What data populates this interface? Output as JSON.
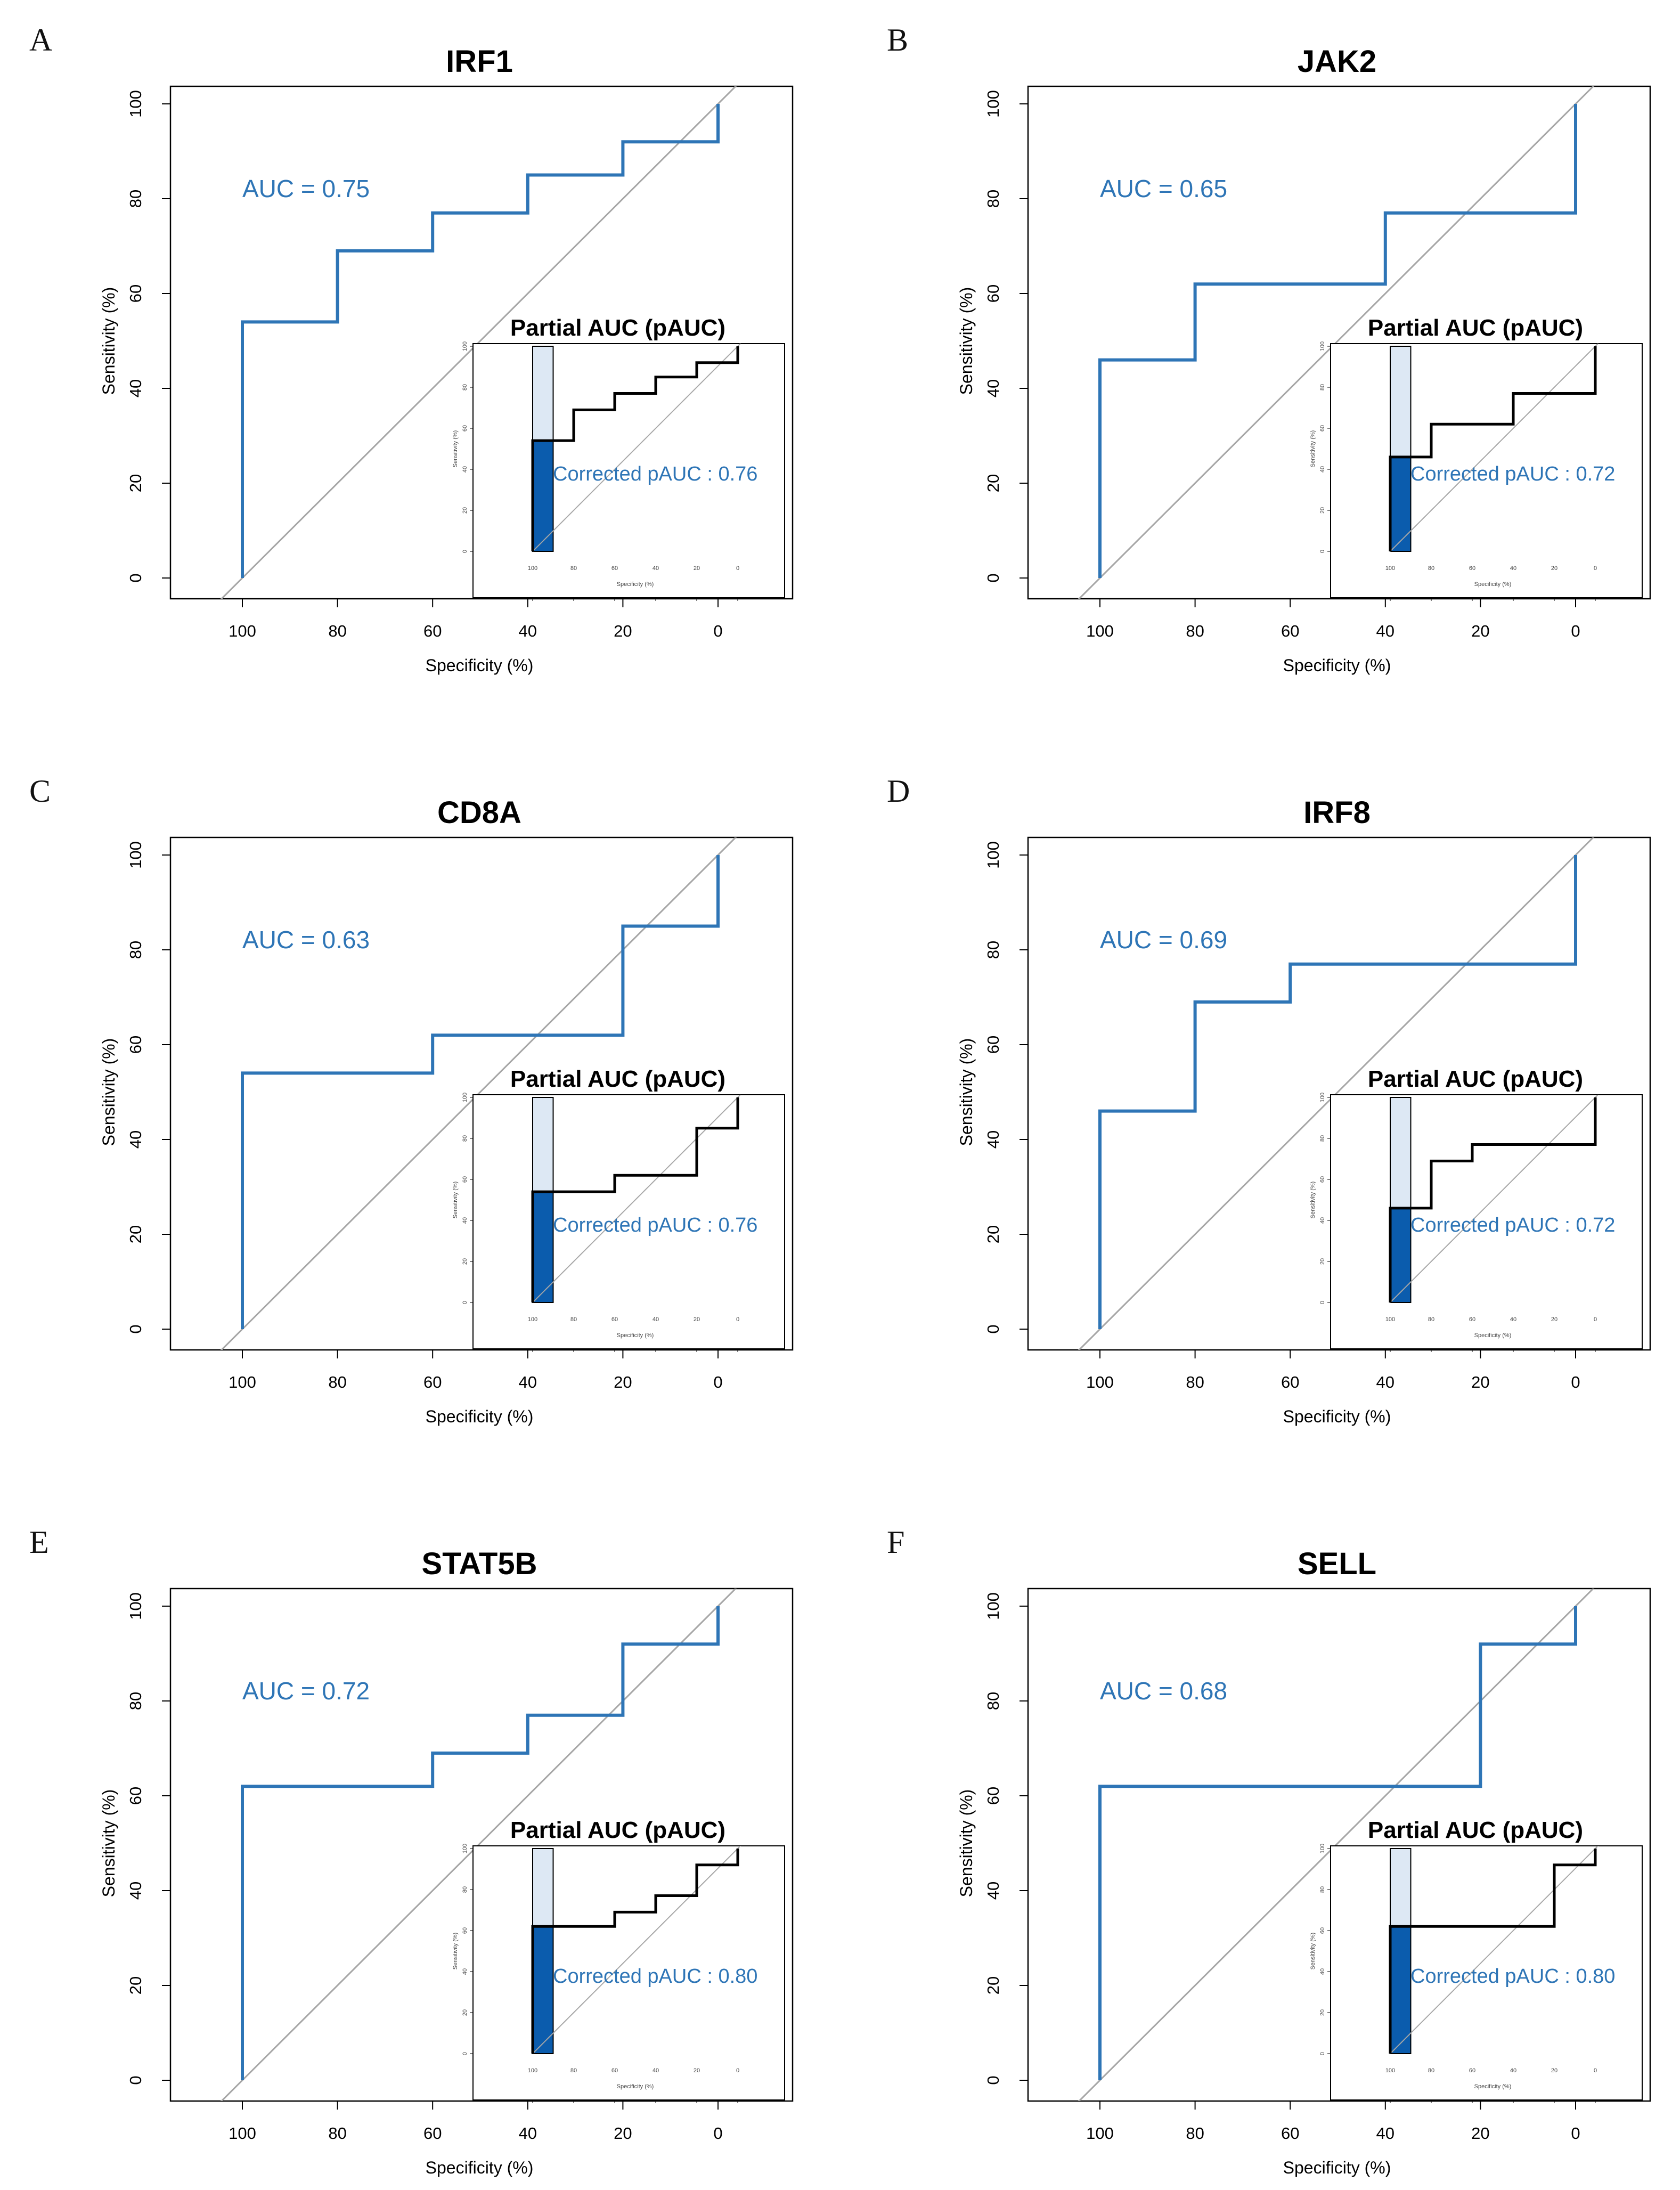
{
  "figure": {
    "axis_labels": {
      "x": "Specificity (%)",
      "y": "Sensitivity (%)",
      "inset_x": "Specificity (%)",
      "inset_y": "Sensitivity (%)"
    },
    "inset_title": "Partial AUC (pAUC)",
    "x_ticks": [
      "100",
      "80",
      "60",
      "40",
      "20",
      "0"
    ],
    "y_ticks": [
      "0",
      "20",
      "40",
      "60",
      "80",
      "100"
    ],
    "inset_x_ticks": [
      "100",
      "80",
      "60",
      "40",
      "20",
      "0"
    ],
    "inset_y_ticks": [
      "0",
      "20",
      "40",
      "60",
      "80",
      "100"
    ],
    "colors": {
      "roc_line": "#2e75b6",
      "diagonal": "#a6a6a6",
      "inset_line": "#000000",
      "pauc_fill": "#0b5cad",
      "partial_region": "#dde8f4"
    }
  },
  "chart_data": [
    {
      "panel": "A",
      "type": "line",
      "title": "IRF1",
      "auc_label": "AUC = 0.75",
      "pauc_label": "Corrected pAUC : 0.76",
      "xlabel": "Specificity (%)",
      "ylabel": "Sensitivity (%)",
      "xlim": [
        100,
        0
      ],
      "ylim": [
        0,
        100
      ],
      "partial_specificity_range": [
        90,
        100
      ],
      "roc": [
        [
          100,
          0
        ],
        [
          100,
          54
        ],
        [
          80,
          54
        ],
        [
          80,
          69
        ],
        [
          60,
          69
        ],
        [
          60,
          77
        ],
        [
          40,
          77
        ],
        [
          40,
          85
        ],
        [
          20,
          85
        ],
        [
          20,
          92
        ],
        [
          0,
          92
        ],
        [
          0,
          100
        ]
      ]
    },
    {
      "panel": "B",
      "type": "line",
      "title": "JAK2",
      "auc_label": "AUC = 0.65",
      "pauc_label": "Corrected pAUC : 0.72",
      "xlabel": "Specificity (%)",
      "ylabel": "Sensitivity (%)",
      "xlim": [
        100,
        0
      ],
      "ylim": [
        0,
        100
      ],
      "partial_specificity_range": [
        90,
        100
      ],
      "roc": [
        [
          100,
          0
        ],
        [
          100,
          46
        ],
        [
          80,
          46
        ],
        [
          80,
          62
        ],
        [
          40,
          62
        ],
        [
          40,
          77
        ],
        [
          0,
          77
        ],
        [
          0,
          100
        ]
      ]
    },
    {
      "panel": "C",
      "type": "line",
      "title": "CD8A",
      "auc_label": "AUC = 0.63",
      "pauc_label": "Corrected pAUC : 0.76",
      "xlabel": "Specificity (%)",
      "ylabel": "Sensitivity (%)",
      "xlim": [
        100,
        0
      ],
      "ylim": [
        0,
        100
      ],
      "partial_specificity_range": [
        90,
        100
      ],
      "roc": [
        [
          100,
          0
        ],
        [
          100,
          54
        ],
        [
          60,
          54
        ],
        [
          60,
          62
        ],
        [
          20,
          62
        ],
        [
          20,
          85
        ],
        [
          0,
          85
        ],
        [
          0,
          100
        ]
      ]
    },
    {
      "panel": "D",
      "type": "line",
      "title": "IRF8",
      "auc_label": "AUC = 0.69",
      "pauc_label": "Corrected pAUC : 0.72",
      "xlabel": "Specificity (%)",
      "ylabel": "Sensitivity (%)",
      "xlim": [
        100,
        0
      ],
      "ylim": [
        0,
        100
      ],
      "partial_specificity_range": [
        90,
        100
      ],
      "roc": [
        [
          100,
          0
        ],
        [
          100,
          46
        ],
        [
          80,
          46
        ],
        [
          80,
          69
        ],
        [
          60,
          69
        ],
        [
          60,
          77
        ],
        [
          0,
          77
        ],
        [
          0,
          100
        ]
      ]
    },
    {
      "panel": "E",
      "type": "line",
      "title": "STAT5B",
      "auc_label": "AUC = 0.72",
      "pauc_label": "Corrected pAUC : 0.80",
      "xlabel": "Specificity (%)",
      "ylabel": "Sensitivity (%)",
      "xlim": [
        100,
        0
      ],
      "ylim": [
        0,
        100
      ],
      "partial_specificity_range": [
        90,
        100
      ],
      "roc": [
        [
          100,
          0
        ],
        [
          100,
          62
        ],
        [
          60,
          62
        ],
        [
          60,
          69
        ],
        [
          40,
          69
        ],
        [
          40,
          77
        ],
        [
          20,
          77
        ],
        [
          20,
          92
        ],
        [
          0,
          92
        ],
        [
          0,
          100
        ]
      ]
    },
    {
      "panel": "F",
      "type": "line",
      "title": "SELL",
      "auc_label": "AUC = 0.68",
      "pauc_label": "Corrected pAUC : 0.80",
      "xlabel": "Specificity (%)",
      "ylabel": "Sensitivity (%)",
      "xlim": [
        100,
        0
      ],
      "ylim": [
        0,
        100
      ],
      "partial_specificity_range": [
        90,
        100
      ],
      "roc": [
        [
          100,
          0
        ],
        [
          100,
          62
        ],
        [
          20,
          62
        ],
        [
          20,
          92
        ],
        [
          0,
          92
        ],
        [
          0,
          100
        ]
      ]
    }
  ]
}
